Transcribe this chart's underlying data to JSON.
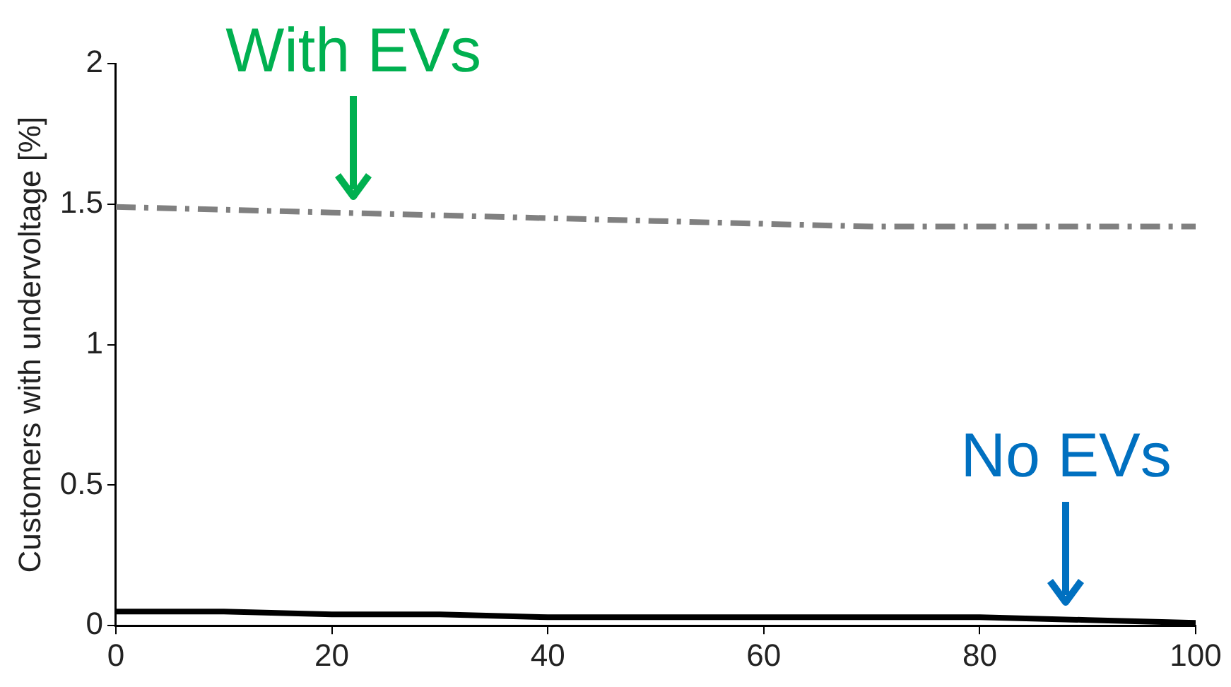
{
  "chart_data": {
    "type": "line",
    "ylabel": "Customers with undervoltage [%]",
    "x": [
      0,
      10,
      20,
      30,
      40,
      50,
      60,
      70,
      80,
      90,
      100
    ],
    "series": [
      {
        "color": "#808080",
        "line_style": "dashed",
        "values": [
          1.49,
          1.48,
          1.47,
          1.46,
          1.45,
          1.44,
          1.43,
          1.42,
          1.42,
          1.42,
          1.42
        ]
      },
      {
        "color": "#000000",
        "line_style": "solid",
        "values": [
          0.05,
          0.05,
          0.04,
          0.04,
          0.03,
          0.03,
          0.03,
          0.03,
          0.03,
          0.02,
          0.01
        ]
      }
    ],
    "xlim": [
      0,
      100
    ],
    "xticks": [
      0,
      20,
      40,
      60,
      80,
      100
    ],
    "ylim": [
      0,
      2
    ],
    "yticks": [
      0,
      0.5,
      1,
      1.5,
      2
    ],
    "annotations": [
      {
        "text": "With EVs",
        "x": 22,
        "y": 1.47
      },
      {
        "text": "No EVs",
        "x": 88,
        "y": 0.03
      }
    ],
    "grid": false,
    "legend": false,
    "marker": "none"
  }
}
